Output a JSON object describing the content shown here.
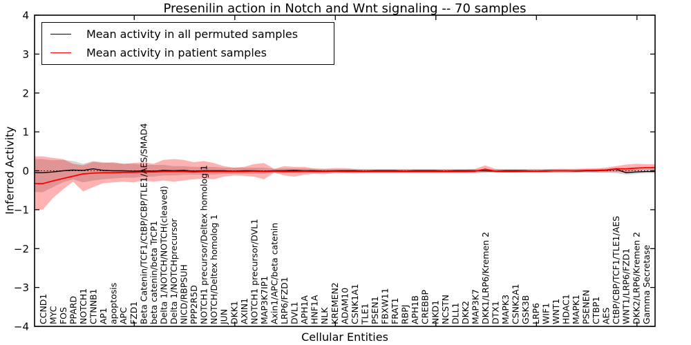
{
  "figure": {
    "title": "Presenilin action in Notch and Wnt signaling -- 70 samples",
    "xlabel": "Cellular Entities",
    "ylabel": "Inferred Activity"
  },
  "legend": {
    "items": [
      {
        "label": "Mean activity in all permuted samples",
        "color": "#000000"
      },
      {
        "label": "Mean activity in patient samples",
        "color": "#ff0000"
      }
    ]
  },
  "chart_data": {
    "type": "line",
    "title": "Presenilin action in Notch and Wnt signaling -- 70 samples",
    "xlabel": "Cellular Entities",
    "ylabel": "Inferred Activity",
    "ylim": [
      -4,
      4
    ],
    "yticks": [
      4,
      3,
      2,
      1,
      0,
      -1,
      -2,
      -3,
      -4
    ],
    "ytick_labels": [
      "4",
      "3",
      "2",
      "1",
      "0",
      "−1",
      "−2",
      "−3",
      "−4"
    ],
    "xticks": [
      10,
      20,
      30,
      40,
      50,
      60
    ],
    "grid": false,
    "legend_position": "upper left",
    "zero_reference_line": 0,
    "categories": [
      "CCND1",
      "MYC",
      "FOS",
      "PPARD",
      "NOTCH1",
      "CTNNB1",
      "AP1",
      "apoptosis",
      "APC",
      "FZD1",
      "Beta Catenin/TCF1/CtBP/CBP/TLE1/AES/SMAD4",
      "beta catenin/beta TrCP1",
      "Delta 1/NOTCH/NOTCH(cleaved)",
      "Delta 1/NOTCHprecursor",
      "NICD/RBPSUH",
      "PPP2R5D",
      "NOTCH1 precursor/Deltex homolog 1",
      "NOTCH/Deltex homolog 1",
      "JUN",
      "DKK1",
      "AXIN1",
      "NOTCH1 precursor/DVL1",
      "MAP3K7IP1",
      "Axin1/APC/beta catenin",
      "LRP6/FZD1",
      "DVL1",
      "APH1A",
      "HNF1A",
      "NLK",
      "KREMEN2",
      "ADAM10",
      "CSNK1A1",
      "TLE1",
      "PSEN1",
      "FBXW11",
      "FRAT1",
      "RBPJ",
      "APH1B",
      "CREBBP",
      "NKD1",
      "NCSTN",
      "DLL1",
      "DKK2",
      "MAP3K7",
      "DKK1/LRP6/Kremen 2",
      "DTX1",
      "MAPK3",
      "CSNK2A1",
      "GSK3B",
      "LRP6",
      "WIF1",
      "WNT1",
      "HDAC1",
      "MAPK1",
      "PSENEN",
      "CTBP1",
      "AES",
      "CtBP/CBP/TCF1/TLE1/AES",
      "WNT1/LRP6/FZD1",
      "DKK2/LRP6/Kremen 2",
      "Gamma Secretase"
    ],
    "series": [
      {
        "name": "Mean activity in all permuted samples",
        "color": "#000000",
        "band_color": "rgba(0,0,0,0.17)",
        "values": [
          -0.05,
          -0.03,
          0.0,
          0.02,
          0.01,
          0.05,
          0.01,
          0.0,
          0.0,
          -0.01,
          0.0,
          -0.01,
          0.01,
          0.0,
          0.01,
          -0.01,
          0.0,
          0.0,
          0.0,
          -0.01,
          0.0,
          0.0,
          -0.01,
          0.0,
          0.0,
          0.01,
          0.0,
          0.0,
          -0.01,
          0.0,
          0.0,
          0.0,
          -0.01,
          0.0,
          0.0,
          0.0,
          -0.01,
          0.0,
          0.0,
          0.0,
          -0.01,
          0.0,
          0.0,
          0.0,
          0.0,
          -0.01,
          0.0,
          0.0,
          0.0,
          -0.01,
          0.0,
          0.0,
          0.0,
          -0.01,
          0.0,
          0.0,
          0.01,
          0.04,
          -0.05,
          -0.03,
          -0.02
        ],
        "band_lo": [
          -0.55,
          -0.42,
          -0.3,
          -0.22,
          -0.3,
          -0.25,
          -0.22,
          -0.2,
          -0.18,
          -0.18,
          -0.15,
          -0.15,
          -0.12,
          -0.12,
          -0.1,
          -0.1,
          -0.1,
          -0.1,
          -0.08,
          -0.08,
          -0.08,
          -0.08,
          -0.08,
          -0.05,
          -0.06,
          -0.06,
          -0.06,
          -0.05,
          -0.05,
          -0.04,
          -0.04,
          -0.04,
          -0.04,
          -0.04,
          -0.04,
          -0.04,
          -0.04,
          -0.04,
          -0.04,
          -0.04,
          -0.04,
          -0.04,
          -0.04,
          -0.04,
          -0.04,
          -0.04,
          -0.04,
          -0.04,
          -0.04,
          -0.04,
          -0.04,
          -0.04,
          -0.04,
          -0.04,
          -0.04,
          -0.05,
          -0.05,
          -0.06,
          -0.1,
          -0.08,
          -0.06
        ],
        "band_hi": [
          0.3,
          0.27,
          0.28,
          0.25,
          0.18,
          0.25,
          0.22,
          0.2,
          0.18,
          0.18,
          0.15,
          0.15,
          0.15,
          0.12,
          0.12,
          0.1,
          0.1,
          0.1,
          0.08,
          0.08,
          0.08,
          0.08,
          0.08,
          0.05,
          0.06,
          0.06,
          0.06,
          0.05,
          0.05,
          0.04,
          0.04,
          0.04,
          0.04,
          0.04,
          0.04,
          0.04,
          0.04,
          0.04,
          0.04,
          0.04,
          0.04,
          0.04,
          0.04,
          0.04,
          0.04,
          0.04,
          0.04,
          0.04,
          0.04,
          0.04,
          0.04,
          0.04,
          0.04,
          0.04,
          0.04,
          0.05,
          0.05,
          0.08,
          0.06,
          0.05,
          0.05
        ]
      },
      {
        "name": "Mean activity in patient samples",
        "color": "#ff0000",
        "band_color": "rgba(255,0,0,0.30)",
        "values": [
          -0.33,
          -0.26,
          -0.2,
          -0.14,
          -0.08,
          -0.06,
          -0.05,
          -0.05,
          -0.04,
          -0.04,
          -0.03,
          -0.03,
          -0.02,
          -0.02,
          -0.02,
          -0.03,
          -0.02,
          -0.02,
          -0.02,
          -0.02,
          -0.02,
          -0.01,
          -0.02,
          -0.01,
          -0.02,
          -0.02,
          -0.01,
          -0.02,
          -0.02,
          -0.01,
          -0.02,
          -0.02,
          -0.02,
          -0.02,
          -0.02,
          -0.02,
          -0.02,
          -0.02,
          -0.02,
          -0.02,
          -0.02,
          -0.02,
          -0.02,
          -0.01,
          0.04,
          -0.01,
          -0.02,
          -0.02,
          -0.01,
          -0.01,
          -0.01,
          0.0,
          0.0,
          0.0,
          0.01,
          0.01,
          0.02,
          0.05,
          0.05,
          0.07,
          0.08
        ],
        "band_lo": [
          -1.0,
          -0.7,
          -0.48,
          -0.28,
          -0.53,
          -0.42,
          -0.32,
          -0.3,
          -0.28,
          -0.3,
          -0.25,
          -0.28,
          -0.25,
          -0.28,
          -0.25,
          -0.22,
          -0.2,
          -0.22,
          -0.15,
          -0.12,
          -0.13,
          -0.15,
          -0.22,
          -0.05,
          -0.12,
          -0.15,
          -0.1,
          -0.08,
          -0.09,
          -0.06,
          -0.06,
          -0.07,
          -0.06,
          -0.06,
          -0.06,
          -0.06,
          -0.06,
          -0.06,
          -0.06,
          -0.06,
          -0.06,
          -0.06,
          -0.06,
          -0.06,
          -0.04,
          -0.05,
          -0.05,
          -0.05,
          -0.05,
          -0.05,
          -0.05,
          -0.05,
          -0.05,
          -0.05,
          -0.04,
          -0.04,
          -0.04,
          -0.03,
          -0.04,
          0.0,
          0.02
        ],
        "band_hi": [
          0.37,
          0.33,
          0.3,
          0.18,
          0.14,
          0.23,
          0.2,
          0.22,
          0.18,
          0.2,
          0.22,
          0.18,
          0.28,
          0.3,
          0.28,
          0.22,
          0.25,
          0.2,
          0.12,
          0.08,
          0.1,
          0.17,
          0.2,
          0.05,
          0.12,
          0.1,
          0.1,
          0.06,
          0.05,
          0.07,
          0.07,
          0.05,
          0.04,
          0.04,
          0.04,
          0.04,
          0.04,
          0.04,
          0.04,
          0.04,
          0.04,
          0.04,
          0.04,
          0.05,
          0.14,
          0.05,
          0.04,
          0.04,
          0.04,
          0.04,
          0.04,
          0.05,
          0.05,
          0.05,
          0.06,
          0.06,
          0.08,
          0.12,
          0.16,
          0.18,
          0.17
        ]
      }
    ]
  }
}
